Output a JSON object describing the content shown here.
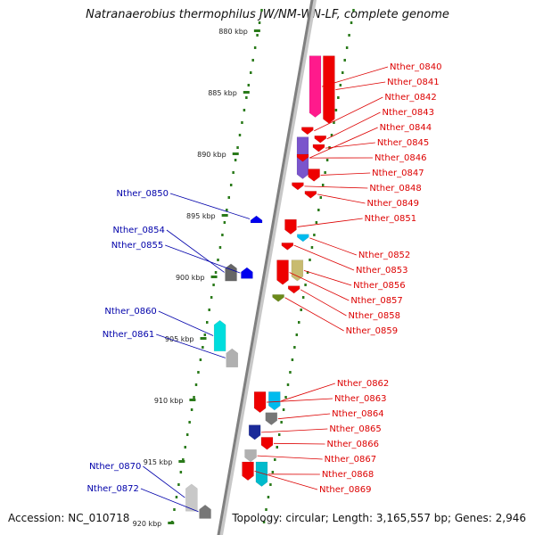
{
  "title": "Natranaerobius thermophilus JW/NM-WN-LF, complete genome",
  "footer": {
    "accession": "Accession: NC_010718",
    "summary": "Topology: circular; Length: 3,165,557 bp; Genes: 2,946"
  },
  "colors": {
    "right_label": "#dd0000",
    "left_label": "#0000aa",
    "ruler": "#2a7a1a"
  },
  "scale": {
    "ticks": [
      {
        "kbp": 880,
        "label": "880 kbp"
      },
      {
        "kbp": 885,
        "label": "885 kbp"
      },
      {
        "kbp": 890,
        "label": "890 kbp"
      },
      {
        "kbp": 895,
        "label": "895 kbp"
      },
      {
        "kbp": 900,
        "label": "900 kbp"
      },
      {
        "kbp": 905,
        "label": "905 kbp"
      },
      {
        "kbp": 910,
        "label": "910 kbp"
      },
      {
        "kbp": 915,
        "label": "915 kbp"
      },
      {
        "kbp": 920,
        "label": "920 kbp"
      }
    ]
  },
  "genes_right": [
    {
      "name": "Nther_0840",
      "color": "#ff1a8c",
      "start": 882.0,
      "end": 887.0
    },
    {
      "name": "Nther_0841",
      "color": "#ee0000",
      "start": 882.0,
      "end": 887.5
    },
    {
      "name": "Nther_0842",
      "color": "#ee0000",
      "start": 887.8,
      "end": 888.4
    },
    {
      "name": "Nther_0843",
      "color": "#ee0000",
      "start": 888.5,
      "end": 889.0
    },
    {
      "name": "Nther_0844",
      "color": "#7a55cc",
      "start": 888.6,
      "end": 892.0
    },
    {
      "name": "Nther_0845",
      "color": "#ee0000",
      "start": 889.2,
      "end": 889.8
    },
    {
      "name": "Nther_0846",
      "color": "#ee0000",
      "start": 890.0,
      "end": 890.6
    },
    {
      "name": "Nther_0847",
      "color": "#ee0000",
      "start": 891.2,
      "end": 892.2
    },
    {
      "name": "Nther_0848",
      "color": "#ee0000",
      "start": 892.3,
      "end": 892.9
    },
    {
      "name": "Nther_0849",
      "color": "#ee0000",
      "start": 893.0,
      "end": 893.5
    },
    {
      "name": "Nther_0851",
      "color": "#ee0000",
      "start": 895.3,
      "end": 896.5
    },
    {
      "name": "Nther_0852",
      "color": "#00bbee",
      "start": 896.5,
      "end": 897.1
    },
    {
      "name": "Nther_0853",
      "color": "#ee0000",
      "start": 897.2,
      "end": 897.6
    },
    {
      "name": "Nther_0856",
      "color": "#c8bb70",
      "start": 898.6,
      "end": 900.3
    },
    {
      "name": "Nther_0857",
      "color": "#ee0000",
      "start": 898.6,
      "end": 900.6
    },
    {
      "name": "Nther_0858",
      "color": "#ee0000",
      "start": 900.7,
      "end": 901.3
    },
    {
      "name": "Nther_0859",
      "color": "#6b8a1a",
      "start": 901.4,
      "end": 901.9
    },
    {
      "name": "Nther_0862",
      "color": "#00bbee",
      "start": 909.3,
      "end": 910.8
    },
    {
      "name": "Nther_0863",
      "color": "#ee0000",
      "start": 909.3,
      "end": 911.0
    },
    {
      "name": "Nther_0864",
      "color": "#777777",
      "start": 911.0,
      "end": 912.0
    },
    {
      "name": "Nther_0865",
      "color": "#1a2a99",
      "start": 912.0,
      "end": 913.2
    },
    {
      "name": "Nther_0866",
      "color": "#ee0000",
      "start": 913.0,
      "end": 914.0
    },
    {
      "name": "Nther_0867",
      "color": "#b0b0b0",
      "start": 914.0,
      "end": 915.0
    },
    {
      "name": "Nther_0868",
      "color": "#00bbcc",
      "start": 915.0,
      "end": 917.0
    },
    {
      "name": "Nther_0869",
      "color": "#ee0000",
      "start": 915.0,
      "end": 916.5
    }
  ],
  "genes_left": [
    {
      "name": "Nther_0850",
      "color": "#0000ee",
      "start": 895.0,
      "end": 895.5
    },
    {
      "name": "Nther_0854",
      "color": "#666666",
      "start": 898.9,
      "end": 900.3
    },
    {
      "name": "Nther_0855",
      "color": "#0000ee",
      "start": 899.2,
      "end": 900.1
    },
    {
      "name": "Nther_0860",
      "color": "#00dddd",
      "start": 903.5,
      "end": 906.0
    },
    {
      "name": "Nther_0861",
      "color": "#b0b0b0",
      "start": 905.8,
      "end": 907.3
    },
    {
      "name": "Nther_0870",
      "color": "#c8c8c8",
      "start": 916.8,
      "end": 919.0
    },
    {
      "name": "Nther_0872",
      "color": "#777777",
      "start": 918.5,
      "end": 919.6
    }
  ]
}
